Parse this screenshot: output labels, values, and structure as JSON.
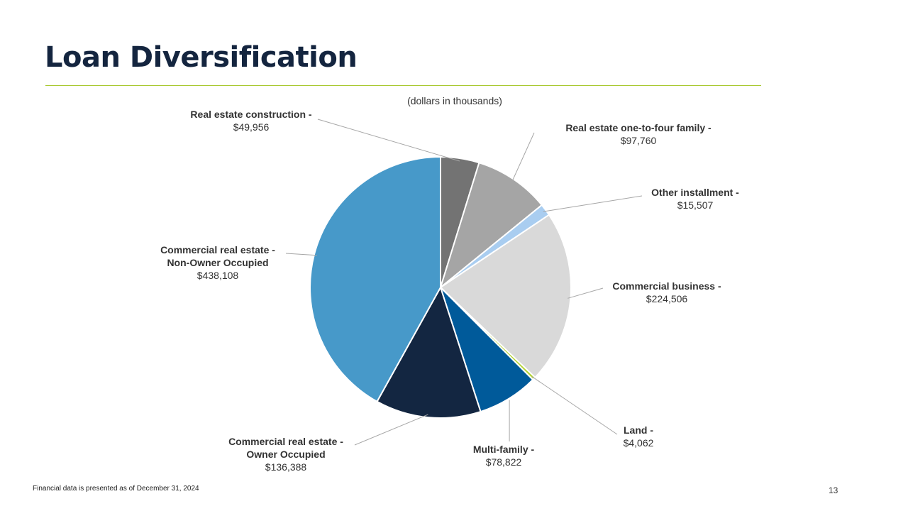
{
  "page": {
    "title": "Loan Diversification",
    "footnote": "Financial data is presented as of December 31, 2024",
    "page_number": "13"
  },
  "chart_data": {
    "type": "pie",
    "subtitle": "(dollars in thousands)",
    "start": "12 o'clock, clockwise",
    "slices": [
      {
        "name": "Real estate construction -",
        "value_label": "$49,956",
        "value": 49956,
        "color": "#737373"
      },
      {
        "name": "Real estate one-to-four family -",
        "value_label": "$97,760",
        "value": 97760,
        "color": "#a5a5a5"
      },
      {
        "name": "Other installment -",
        "value_label": "$15,507",
        "value": 15507,
        "color": "#a9cdf0"
      },
      {
        "name": "Commercial business -",
        "value_label": "$224,506",
        "value": 224506,
        "color": "#d9d9d9"
      },
      {
        "name": "Land -",
        "value_label": "$4,062",
        "value": 4062,
        "color": "#b4d334"
      },
      {
        "name": "Multi-family -",
        "value_label": "$78,822",
        "value": 78822,
        "color": "#005a9a"
      },
      {
        "name": "Commercial real estate - Owner Occupied",
        "name_lines": [
          "Commercial real estate -",
          "Owner Occupied"
        ],
        "value_label": "$136,388",
        "value": 136388,
        "color": "#132641"
      },
      {
        "name": "Commercial real estate - Non-Owner Occupied",
        "name_lines": [
          "Commercial real estate -",
          "Non-Owner Occupied"
        ],
        "value_label": "$438,108",
        "value": 438108,
        "color": "#4799c9"
      }
    ]
  }
}
